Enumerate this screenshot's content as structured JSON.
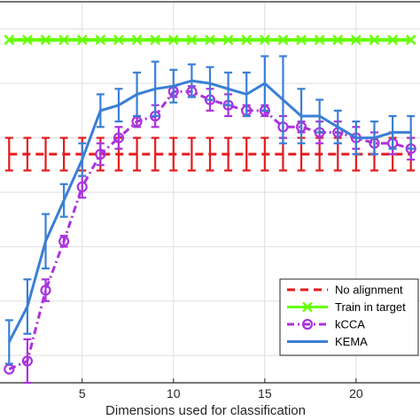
{
  "chart_data": {
    "type": "line",
    "title": "",
    "xlabel": "Dimensions used for classification",
    "ylabel": "",
    "xlim": [
      0.5,
      23.5
    ],
    "ylim": [
      0.3,
      1.0
    ],
    "xticks": [
      5,
      10,
      15,
      20
    ],
    "xtick_labels": [
      "5",
      "10",
      "15",
      "20"
    ],
    "grid": true,
    "legend_position": "bottom-right",
    "x": [
      1,
      2,
      3,
      4,
      5,
      6,
      7,
      8,
      9,
      10,
      11,
      12,
      13,
      14,
      15,
      16,
      17,
      18,
      19,
      20,
      21,
      22,
      23
    ],
    "series": [
      {
        "name": "No alignment",
        "color": "#e41a1c",
        "style": "dashed",
        "marker": "none",
        "values": [
          0.72,
          0.72,
          0.72,
          0.72,
          0.72,
          0.72,
          0.72,
          0.72,
          0.72,
          0.72,
          0.72,
          0.72,
          0.72,
          0.72,
          0.72,
          0.72,
          0.72,
          0.72,
          0.72,
          0.72,
          0.72,
          0.72,
          0.72
        ],
        "errors": [
          0.03,
          0.03,
          0.03,
          0.03,
          0.03,
          0.03,
          0.03,
          0.03,
          0.03,
          0.03,
          0.03,
          0.03,
          0.03,
          0.03,
          0.03,
          0.03,
          0.03,
          0.03,
          0.03,
          0.03,
          0.03,
          0.03,
          0.03
        ]
      },
      {
        "name": "Train in target",
        "color": "#66ff00",
        "style": "solid",
        "marker": "x",
        "values": [
          0.93,
          0.93,
          0.93,
          0.93,
          0.93,
          0.93,
          0.93,
          0.93,
          0.93,
          0.93,
          0.93,
          0.93,
          0.93,
          0.93,
          0.93,
          0.93,
          0.93,
          0.93,
          0.93,
          0.93,
          0.93,
          0.93,
          0.93
        ],
        "errors": []
      },
      {
        "name": "kCCA",
        "color": "#aa33dd",
        "style": "dashdot",
        "marker": "o",
        "values": [
          0.325,
          0.34,
          0.47,
          0.56,
          0.66,
          0.72,
          0.75,
          0.78,
          0.79,
          0.835,
          0.835,
          0.82,
          0.81,
          0.8,
          0.8,
          0.77,
          0.77,
          0.76,
          0.76,
          0.75,
          0.74,
          0.74,
          0.73
        ],
        "errors": [
          0,
          0.04,
          0.02,
          0.01,
          0.02,
          0.02,
          0.02,
          0.01,
          0.02,
          0.01,
          0.01,
          0.02,
          0.02,
          0.01,
          0.01,
          0.02,
          0.01,
          0.02,
          0.02,
          0.02,
          0.02,
          0.02,
          0.02
        ]
      },
      {
        "name": "KEMA",
        "color": "#3a7fd5",
        "style": "solid",
        "marker": "none",
        "values": [
          0.375,
          0.44,
          0.56,
          0.635,
          0.71,
          0.8,
          0.81,
          0.83,
          0.84,
          0.845,
          0.855,
          0.85,
          0.84,
          0.83,
          0.85,
          0.82,
          0.79,
          0.79,
          0.77,
          0.75,
          0.75,
          0.76,
          0.76
        ],
        "errors": [
          0.04,
          0.05,
          0.05,
          0.03,
          0.03,
          0.03,
          0.03,
          0.04,
          0.05,
          0.03,
          0.03,
          0.03,
          0.03,
          0.04,
          0.05,
          0.08,
          0.05,
          0.03,
          0.03,
          0.03,
          0.03,
          0.03,
          0.03
        ]
      }
    ]
  }
}
